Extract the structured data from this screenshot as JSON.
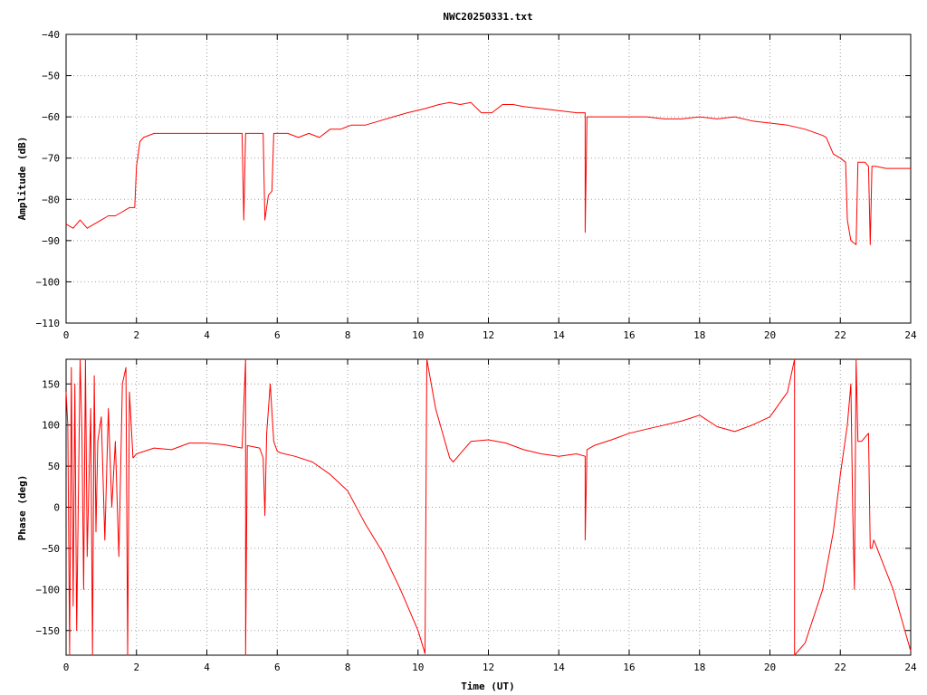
{
  "chart_data": [
    {
      "type": "line",
      "title": "NWC20250331.txt",
      "xlabel": "",
      "ylabel": "Amplitude (dB)",
      "xlim": [
        0,
        24
      ],
      "ylim": [
        -110,
        -40
      ],
      "xticks": [
        0,
        2,
        4,
        6,
        8,
        10,
        12,
        14,
        16,
        18,
        20,
        22,
        24
      ],
      "yticks": [
        -110,
        -100,
        -90,
        -80,
        -70,
        -60,
        -50,
        -40
      ],
      "grid": true,
      "color": "#ff0000",
      "series": [
        {
          "x": [
            0,
            0.2,
            0.4,
            0.6,
            0.8,
            1.0,
            1.2,
            1.4,
            1.6,
            1.8,
            1.95,
            2.0,
            2.1,
            2.2,
            2.5,
            3.0,
            3.5,
            4.0,
            4.5,
            5.0,
            5.05,
            5.1,
            5.2,
            5.5,
            5.6,
            5.65,
            5.75,
            5.85,
            5.9,
            6.05,
            6.1,
            6.3,
            6.6,
            6.9,
            7.2,
            7.5,
            7.8,
            8.1,
            8.5,
            8.9,
            9.3,
            9.7,
            10.2,
            10.6,
            10.9,
            11.2,
            11.5,
            11.8,
            12.1,
            12.4,
            12.7,
            13.0,
            13.5,
            14.0,
            14.5,
            14.75,
            14.75,
            14.8,
            15.5,
            16.0,
            16.5,
            17.0,
            17.5,
            18.0,
            18.5,
            19.0,
            19.5,
            20.0,
            20.5,
            21.0,
            21.5,
            21.6,
            21.8,
            22.0,
            22.15,
            22.2,
            22.3,
            22.45,
            22.5,
            22.7,
            22.8,
            22.85,
            22.9,
            22.95,
            23.0,
            23.3,
            23.6,
            24.0
          ],
          "y": [
            -86,
            -87,
            -85,
            -87,
            -86,
            -85,
            -84,
            -84,
            -83,
            -82,
            -82,
            -72,
            -66,
            -65,
            -64,
            -64,
            -64,
            -64,
            -64,
            -64,
            -85,
            -64,
            -64,
            -64,
            -64,
            -85,
            -79,
            -78,
            -64,
            -64,
            -64,
            -64,
            -65,
            -64,
            -65,
            -63,
            -63,
            -62,
            -62,
            -61,
            -60,
            -59,
            -58,
            -57,
            -56.5,
            -57,
            -56.5,
            -59,
            -59,
            -57,
            -57,
            -57.5,
            -58,
            -58.5,
            -59,
            -59,
            -88,
            -60,
            -60,
            -60,
            -60,
            -60.5,
            -60.5,
            -60,
            -60.5,
            -60,
            -61,
            -61.5,
            -62,
            -63,
            -64.5,
            -65,
            -69,
            -70,
            -71,
            -85,
            -90,
            -91,
            -71,
            -71,
            -72,
            -91,
            -72,
            -72,
            -72,
            -72.5,
            -72.5,
            -72.5
          ]
        }
      ]
    },
    {
      "type": "line",
      "title": "",
      "xlabel": "Time (UT)",
      "ylabel": "Phase (deg)",
      "xlim": [
        0,
        24
      ],
      "ylim": [
        -180,
        180
      ],
      "xticks": [
        0,
        2,
        4,
        6,
        8,
        10,
        12,
        14,
        16,
        18,
        20,
        22,
        24
      ],
      "yticks": [
        -150,
        -100,
        -50,
        0,
        50,
        100,
        150
      ],
      "grid": true,
      "color": "#ff0000",
      "series": [
        {
          "x": [
            0,
            0.05,
            0.1,
            0.15,
            0.2,
            0.25,
            0.3,
            0.4,
            0.45,
            0.5,
            0.55,
            0.6,
            0.7,
            0.75,
            0.8,
            0.85,
            0.9,
            1.0,
            1.1,
            1.2,
            1.3,
            1.4,
            1.5,
            1.6,
            1.7,
            1.75,
            1.8,
            1.9,
            2.0,
            2.5,
            3.0,
            3.5,
            4.0,
            4.5,
            5.0,
            5.1,
            5.1,
            5.15,
            5.5,
            5.6,
            5.65,
            5.7,
            5.8,
            5.9,
            6.0,
            6.1,
            6.5,
            7.0,
            7.5,
            8.0,
            8.5,
            9.0,
            9.5,
            10.0,
            10.2,
            10.25,
            10.5,
            10.9,
            11.0,
            11.5,
            12.0,
            12.5,
            13.0,
            13.5,
            14.0,
            14.5,
            14.75,
            14.75,
            14.8,
            15.0,
            15.5,
            16.0,
            16.5,
            17.0,
            17.5,
            18.0,
            18.5,
            19.0,
            19.5,
            20.0,
            20.5,
            20.7,
            20.7,
            21.0,
            21.5,
            21.8,
            22.0,
            22.2,
            22.3,
            22.35,
            22.4,
            22.45,
            22.5,
            22.6,
            22.8,
            22.85,
            22.9,
            22.95,
            23.0,
            23.5,
            24.0
          ],
          "y": [
            140,
            100,
            -180,
            170,
            -120,
            150,
            -150,
            180,
            90,
            -100,
            180,
            -60,
            120,
            -180,
            160,
            -30,
            80,
            110,
            -40,
            120,
            0,
            80,
            -60,
            150,
            170,
            -180,
            140,
            60,
            65,
            72,
            70,
            78,
            78,
            76,
            72,
            180,
            -180,
            75,
            72,
            60,
            -10,
            90,
            150,
            80,
            68,
            66,
            62,
            55,
            40,
            20,
            -20,
            -55,
            -100,
            -150,
            -178,
            180,
            120,
            60,
            55,
            80,
            82,
            78,
            70,
            65,
            62,
            65,
            62,
            -40,
            70,
            75,
            82,
            90,
            95,
            100,
            105,
            112,
            98,
            92,
            100,
            110,
            140,
            180,
            -180,
            -165,
            -100,
            -30,
            40,
            100,
            150,
            0,
            -100,
            180,
            80,
            80,
            90,
            -50,
            -50,
            -40,
            -45,
            -100,
            -175
          ]
        }
      ]
    }
  ]
}
